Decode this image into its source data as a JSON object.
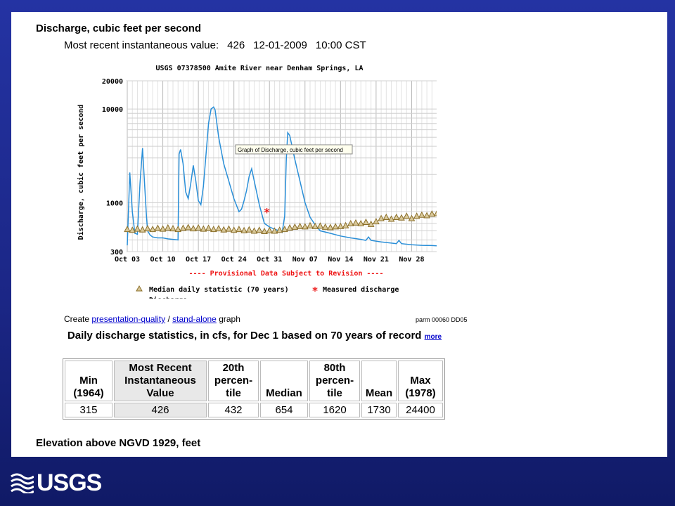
{
  "discharge_section": {
    "title": "Discharge, cubic feet per second",
    "recent_label": "Most recent instantaneous value:",
    "recent_value": "426",
    "recent_date": "12-01-2009",
    "recent_time": "10:00 CST"
  },
  "chart_data": {
    "type": "line",
    "title": "USGS 07378500 Amite River near Denham Springs, LA",
    "ylabel": "Discharge, cubic feet per second",
    "xlabel": "",
    "y_scale": "log",
    "ylim": [
      300,
      20000
    ],
    "y_ticks": [
      300,
      1000,
      10000,
      20000
    ],
    "x_ticks": [
      "Oct 03",
      "Oct 10",
      "Oct 17",
      "Oct 24",
      "Oct 31",
      "Nov 07",
      "Nov 14",
      "Nov 21",
      "Nov 28"
    ],
    "xlim_days": [
      0,
      63
    ],
    "grid": true,
    "provisional_note": "---- Provisional Data Subject to Revision ----",
    "tooltip": "Graph of  Discharge, cubic feet per second",
    "legend_position": "bottom",
    "legend": [
      {
        "label": "Median daily statistic (70 years)",
        "marker": "triangle",
        "color": "#8b6f2a"
      },
      {
        "label": "Measured discharge",
        "marker": "asterisk",
        "color": "#ee2222"
      },
      {
        "label": "Discharge",
        "marker": "line",
        "color": "#2a8fd8"
      }
    ],
    "series": [
      {
        "color": "#2a8fd8",
        "x": [
          0,
          0.5,
          1,
          1.5,
          2,
          2.5,
          3,
          3.5,
          3.8,
          4,
          4.5,
          5,
          6,
          7,
          8,
          9,
          10,
          10.2,
          10.5,
          11,
          11.5,
          12,
          12.5,
          13,
          13.5,
          14,
          14.5,
          15,
          15.5,
          16,
          16.5,
          17,
          17.3,
          18,
          19,
          20,
          21,
          22,
          22.5,
          23,
          23.5,
          24,
          24.5,
          25,
          26,
          27,
          28,
          29,
          30,
          30.5,
          31,
          31.3,
          31.6,
          32,
          33,
          34,
          35,
          36,
          37,
          38,
          40,
          42,
          44,
          46,
          47,
          47.5,
          48,
          50,
          52,
          53,
          53.5,
          54,
          56,
          58,
          60,
          61.5,
          62,
          62.5,
          63
        ],
        "values": [
          350,
          2100,
          800,
          470,
          460,
          1600,
          3800,
          1300,
          700,
          500,
          450,
          430,
          420,
          420,
          410,
          405,
          400,
          3300,
          3700,
          2600,
          1300,
          1100,
          1600,
          2500,
          1700,
          1050,
          950,
          1500,
          3200,
          7000,
          10000,
          10500,
          9800,
          5000,
          2600,
          1700,
          1100,
          800,
          850,
          1050,
          1350,
          1900,
          2300,
          1700,
          950,
          600,
          550,
          520,
          500,
          480,
          720,
          2800,
          5600,
          5200,
          2900,
          1700,
          1000,
          700,
          580,
          500,
          470,
          440,
          420,
          405,
          395,
          430,
          395,
          380,
          370,
          365,
          395,
          365,
          355,
          350,
          348,
          345,
          460,
          400,
          420
        ]
      },
      {
        "color": "#8b6f2a",
        "marker": "triangle",
        "x": [
          0,
          1,
          2,
          3,
          4,
          5,
          6,
          7,
          8,
          9,
          10,
          11,
          12,
          13,
          14,
          15,
          16,
          17,
          18,
          19,
          20,
          21,
          22,
          23,
          24,
          25,
          26,
          27,
          28,
          29,
          30,
          31,
          32,
          33,
          34,
          35,
          36,
          37,
          38,
          39,
          40,
          41,
          42,
          43,
          44,
          45,
          46,
          47,
          48,
          49,
          50,
          51,
          52,
          53,
          54,
          55,
          56,
          57,
          58,
          59,
          60,
          61,
          62,
          63
        ],
        "values": [
          520,
          510,
          525,
          515,
          530,
          520,
          535,
          525,
          540,
          530,
          520,
          535,
          545,
          530,
          540,
          525,
          535,
          520,
          530,
          515,
          525,
          510,
          520,
          505,
          515,
          500,
          510,
          495,
          505,
          500,
          510,
          520,
          540,
          550,
          560,
          555,
          570,
          560,
          565,
          550,
          545,
          555,
          560,
          570,
          600,
          610,
          600,
          620,
          590,
          630,
          680,
          700,
          670,
          700,
          690,
          720,
          680,
          720,
          740,
          730,
          760,
          770,
          780,
          760
        ]
      },
      {
        "color": "#ee2222",
        "marker": "asterisk",
        "x": [
          27.5
        ],
        "values": [
          780
        ]
      }
    ]
  },
  "links": {
    "create_prefix": "Create",
    "presentation": "presentation-quality",
    "slash": "/",
    "standalone": "stand-alone",
    "create_suffix": "graph",
    "parm": "parm 00060 DD05"
  },
  "stats": {
    "title": "Daily discharge statistics, in cfs, for Dec 1 based on 70 years of record",
    "more": "more",
    "headers": [
      "Min (1964)",
      "Most Recent Instantaneous Value",
      "20th percen- tile",
      "Median",
      "80th percen- tile",
      "Mean",
      "Max (1978)"
    ],
    "values": [
      "315",
      "426",
      "432",
      "654",
      "1620",
      "1730",
      "24400"
    ]
  },
  "elevation_section": {
    "title": "Elevation above NGVD 1929, feet"
  },
  "footer": {
    "logo_text": "USGS"
  }
}
